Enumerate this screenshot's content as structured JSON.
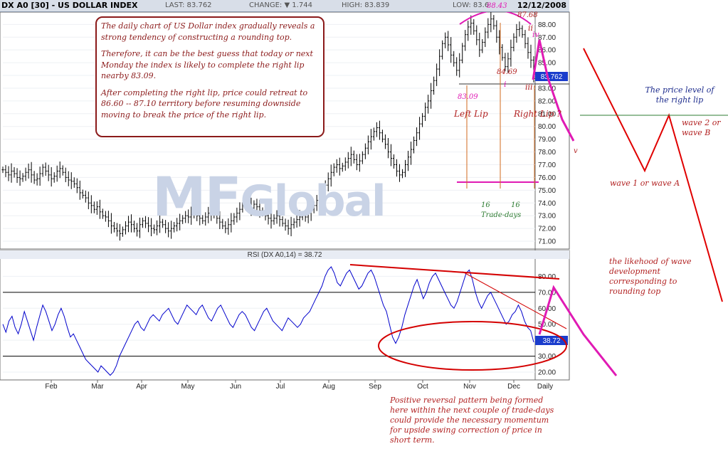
{
  "header": {
    "title": "DX A0 [30] - US DOLLAR INDEX",
    "last": "LAST: 83.762",
    "change": "CHANGE: ▼ 1.744",
    "high": "HIGH: 83.839",
    "low": "LOW: 83.6",
    "date": "12/12/2008"
  },
  "watermark": {
    "brand": "MF",
    "sub": "Global"
  },
  "note_box": {
    "p1": "The daily chart of US Dollar index gradually reveals a strong tendency of constructing a rounding top.",
    "p2": "Therefore, it can be the best guess that today or next Monday the index  is likely to complete the right lip nearby 83.09.",
    "p3": "After completing the right lip, price could retreat to 86.60 -- 87.10 territory before resuming downside moving to break the price of the right lip."
  },
  "annotations": {
    "peak": "88.43",
    "high2": "87.68",
    "low_mid": "84.69",
    "lip_level": "83.09",
    "left_lip": "Left Lip",
    "right_lip": "Right Lip ?",
    "days1": "16",
    "days2": "16",
    "trade_days": "Trade-days",
    "wave_i": "i",
    "wave_ii": "ii",
    "wave_iii": "iii",
    "wave_iv": "iv",
    "wave_v": "v",
    "price_level": "The price level of the right lip",
    "wave2": "wave 2 or wave B",
    "wave1": "wave 1 or wave A",
    "likelihood": "the likehood of wave development corresponding to rounding top",
    "reversal": "Positive reversal pattern being formed here within the next couple of trade-days could provide the necessary momentum for upside swing correction of price in short term.",
    "last_tag": "83.762",
    "rsi_tag": "38.72",
    "daily": "Daily"
  },
  "colors": {
    "bars": "#000000",
    "rsi": "#0000cc",
    "annotation_red": "#b22222",
    "magenta": "#e01ab4",
    "ellipse": "#d40000",
    "price_tag": "#1a3ccc"
  },
  "chart_data": [
    {
      "type": "bar",
      "title": "DX A0 [30] - US DOLLAR INDEX",
      "y_axis": {
        "ticks": [
          71,
          72,
          73,
          74,
          75,
          76,
          77,
          78,
          79,
          80,
          81,
          82,
          83,
          84,
          85,
          86,
          87,
          88
        ],
        "ylim": [
          70.5,
          88.8
        ],
        "side": "right"
      },
      "x_axis": {
        "ticks": [
          "Feb",
          "Mar",
          "Apr",
          "May",
          "Jun",
          "Jul",
          "Aug",
          "Sep",
          "Oct",
          "Nov",
          "Dec",
          "Daily"
        ]
      },
      "series": [
        {
          "values": [
            76.6,
            76.4,
            76.2,
            76.5,
            76.3,
            76.0,
            75.9,
            76.1,
            76.4,
            76.6,
            76.2,
            75.8,
            75.9,
            76.3,
            76.8,
            76.5,
            76.2,
            75.9,
            76.1,
            76.5,
            76.7,
            76.4,
            76.0,
            75.8,
            75.7,
            75.5,
            75.2,
            74.8,
            74.6,
            74.4,
            74.0,
            73.8,
            73.5,
            73.7,
            73.3,
            73.0,
            72.9,
            72.6,
            72.2,
            72.0,
            71.8,
            71.6,
            71.9,
            72.2,
            72.5,
            72.3,
            72.0,
            71.8,
            72.3,
            72.6,
            72.4,
            72.2,
            72.0,
            71.9,
            72.2,
            72.5,
            72.3,
            72.0,
            71.8,
            72.0,
            72.2,
            72.4,
            72.6,
            72.8,
            73.0,
            72.9,
            73.1,
            73.3,
            73.0,
            72.8,
            72.6,
            72.9,
            73.2,
            73.4,
            73.1,
            72.8,
            72.5,
            72.2,
            72.0,
            72.3,
            72.6,
            72.9,
            73.2,
            73.5,
            73.8,
            74.0,
            73.8,
            73.6,
            73.9,
            73.7,
            73.4,
            73.2,
            73.0,
            72.8,
            72.6,
            72.8,
            73.0,
            72.7,
            72.4,
            72.2,
            72.0,
            72.3,
            72.5,
            72.7,
            72.9,
            73.1,
            72.9,
            73.2,
            73.5,
            73.8,
            74.2,
            74.6,
            75.0,
            75.4,
            75.9,
            76.4,
            76.8,
            77.0,
            76.7,
            76.9,
            77.2,
            77.5,
            77.8,
            77.4,
            77.0,
            77.3,
            77.8,
            78.3,
            78.8,
            79.2,
            79.6,
            79.9,
            79.5,
            79.0,
            78.6,
            78.0,
            77.5,
            77.0,
            76.5,
            76.2,
            76.4,
            77.0,
            77.6,
            78.2,
            78.9,
            79.5,
            80.2,
            80.8,
            81.5,
            82.0,
            82.8,
            83.6,
            84.5,
            85.5,
            86.5,
            87.0,
            86.4,
            85.6,
            85.0,
            84.4,
            85.2,
            86.3,
            87.2,
            87.8,
            88.1,
            87.5,
            86.8,
            86.0,
            86.6,
            87.4,
            88.0,
            88.43,
            87.9,
            87.0,
            86.2,
            85.4,
            84.69,
            85.3,
            86.2,
            87.0,
            87.6,
            87.68,
            87.2,
            86.5,
            85.8,
            85.2,
            83.762
          ]
        }
      ]
    },
    {
      "type": "line",
      "title": "RSI (DX A0,14) = 38.72",
      "y_axis": {
        "ticks": [
          20,
          30,
          40,
          50,
          60,
          70,
          80
        ],
        "ylim": [
          16,
          90
        ],
        "side": "right",
        "reference_lines": [
          30,
          70
        ]
      },
      "series": [
        {
          "values": [
            50,
            45,
            52,
            55,
            48,
            44,
            50,
            58,
            52,
            46,
            40,
            48,
            55,
            62,
            58,
            52,
            46,
            50,
            56,
            60,
            55,
            48,
            42,
            44,
            40,
            36,
            32,
            28,
            26,
            24,
            22,
            20,
            24,
            22,
            20,
            18,
            20,
            24,
            30,
            34,
            38,
            42,
            46,
            50,
            52,
            48,
            46,
            50,
            54,
            56,
            54,
            52,
            56,
            58,
            60,
            56,
            52,
            50,
            54,
            58,
            62,
            60,
            58,
            56,
            60,
            62,
            58,
            54,
            52,
            56,
            60,
            62,
            58,
            54,
            50,
            48,
            52,
            56,
            58,
            56,
            52,
            48,
            46,
            50,
            54,
            58,
            60,
            56,
            52,
            50,
            48,
            46,
            50,
            54,
            52,
            50,
            48,
            50,
            54,
            56,
            58,
            62,
            66,
            70,
            74,
            80,
            84,
            86,
            82,
            76,
            74,
            78,
            82,
            84,
            80,
            76,
            72,
            74,
            78,
            82,
            84,
            80,
            74,
            68,
            62,
            58,
            50,
            42,
            38,
            42,
            48,
            56,
            62,
            68,
            74,
            78,
            72,
            66,
            70,
            76,
            80,
            82,
            78,
            74,
            70,
            66,
            62,
            60,
            64,
            70,
            76,
            82,
            84,
            78,
            70,
            64,
            60,
            64,
            68,
            70,
            66,
            62,
            58,
            54,
            50,
            52,
            56,
            58,
            62,
            58,
            52,
            48,
            46,
            38.72
          ]
        }
      ]
    }
  ]
}
